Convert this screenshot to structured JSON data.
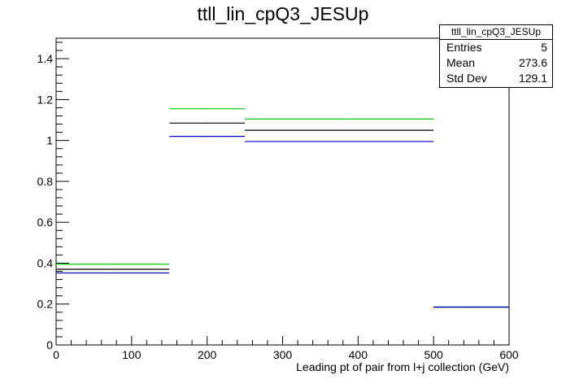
{
  "chart_data": {
    "type": "bar",
    "title": "ttll_lin_cpQ3_JESUp",
    "xlabel": "Leading pt of pair from l+j collection (GeV)",
    "ylabel": "",
    "xlim": [
      0,
      600
    ],
    "ylim": [
      0,
      1.5
    ],
    "x_ticks": [
      0,
      100,
      200,
      300,
      400,
      500,
      600
    ],
    "y_ticks": [
      0,
      0.2,
      0.4,
      0.6,
      0.8,
      1,
      1.2,
      1.4
    ],
    "grid": false,
    "bin_edges": [
      0,
      150,
      250,
      500,
      600
    ],
    "series": [
      {
        "color": "#00cc00",
        "values": [
          0.395,
          1.155,
          1.105,
          0.185
        ]
      },
      {
        "color": "#000000",
        "values": [
          0.37,
          1.085,
          1.05,
          0.185
        ]
      },
      {
        "color": "#0000cc",
        "values": [
          0.352,
          1.02,
          0.995,
          0.185
        ]
      }
    ],
    "stats_box": {
      "name": "ttll_lin_cpQ3_JESUp",
      "rows": [
        {
          "label": "Entries",
          "value": "5"
        },
        {
          "label": "Mean",
          "value": "273.6"
        },
        {
          "label": "Std Dev",
          "value": "129.1"
        }
      ]
    }
  }
}
